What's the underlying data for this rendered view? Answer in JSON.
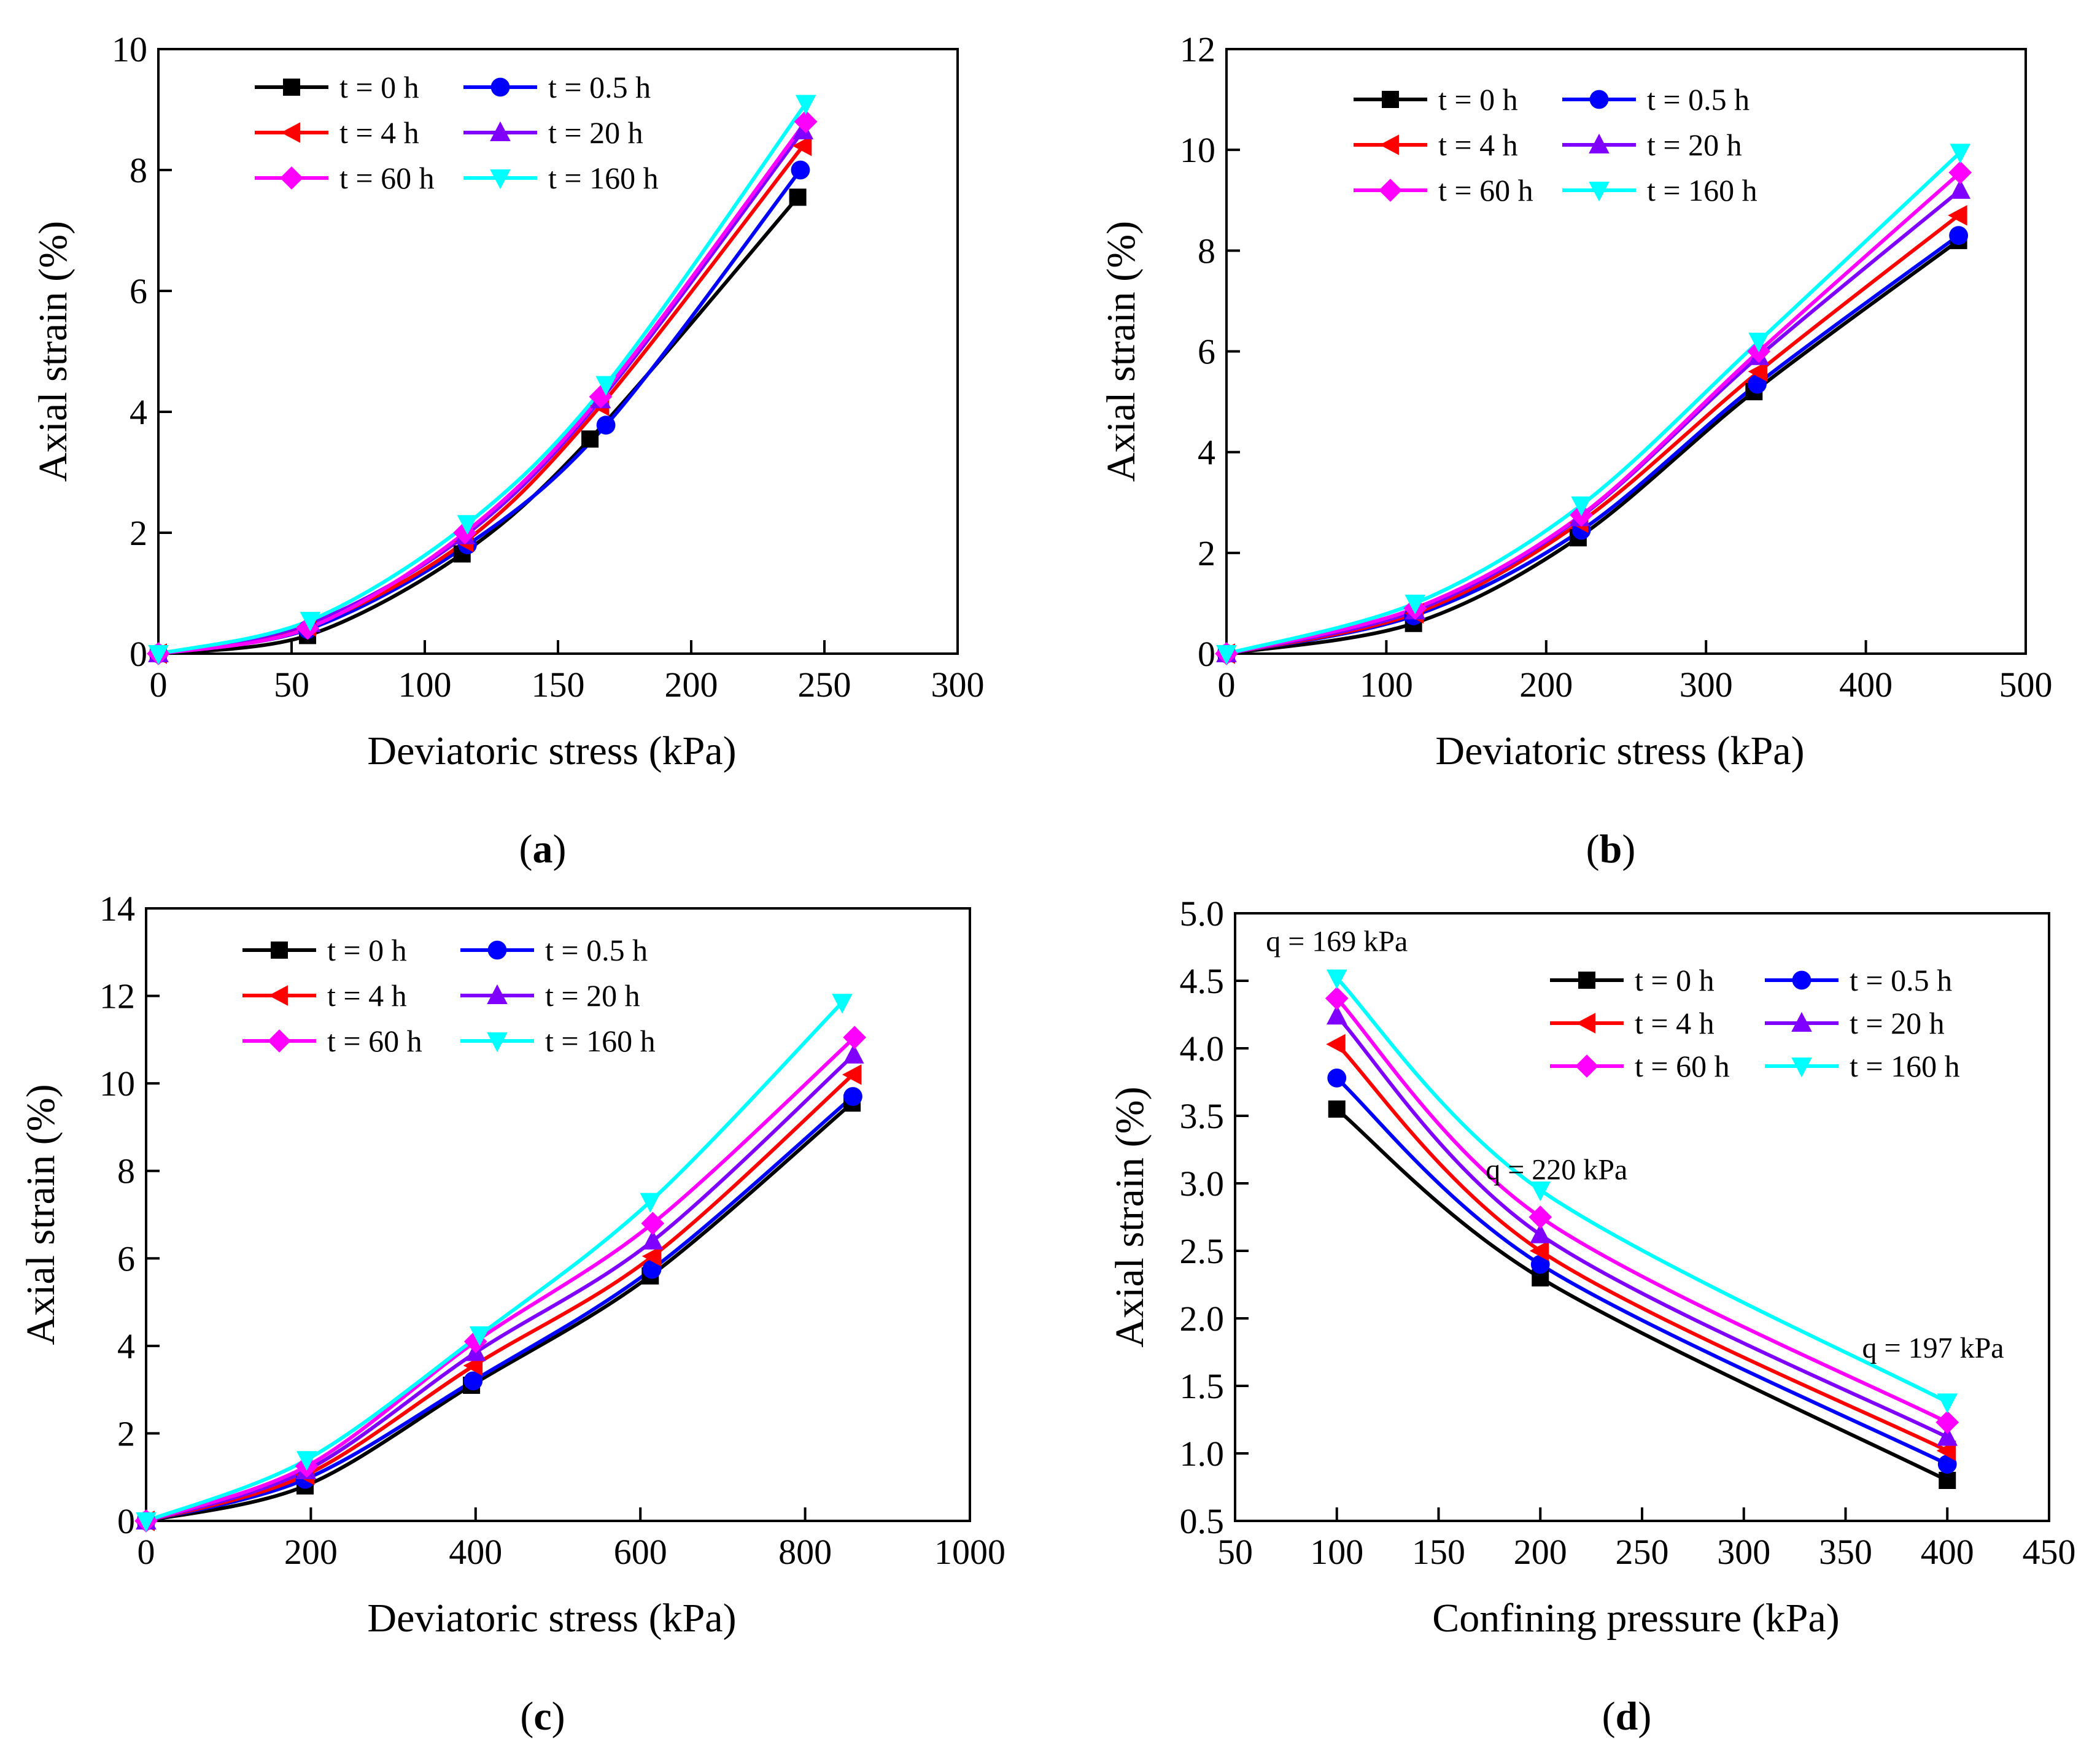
{
  "colors": {
    "t0": "#000000",
    "t05": "#0000ff",
    "t4": "#ff0000",
    "t20": "#8000ff",
    "t60": "#ff00ff",
    "t160": "#00ffff"
  },
  "chart_data": [
    {
      "id": "a",
      "type": "line",
      "panel_label": "a",
      "xlabel": "Deviatoric stress (kPa)",
      "ylabel": "Axial strain (%)",
      "xlim": [
        0,
        300
      ],
      "ylim": [
        0,
        10
      ],
      "xticks": [
        "0",
        "50",
        "100",
        "150",
        "200",
        "250",
        "300"
      ],
      "yticks": [
        "0",
        "2",
        "4",
        "6",
        "8",
        "10"
      ],
      "legend_position": "top-left",
      "series": [
        {
          "name": "t = 0 h",
          "key": "t0",
          "marker": "square",
          "x": [
            0,
            56,
            114,
            162,
            240
          ],
          "y": [
            0,
            0.3,
            1.65,
            3.55,
            7.55
          ]
        },
        {
          "name": "t = 0.5 h",
          "key": "t05",
          "marker": "circle",
          "x": [
            0,
            56,
            116,
            168,
            241
          ],
          "y": [
            0,
            0.4,
            1.8,
            3.78,
            8.0
          ]
        },
        {
          "name": "t = 4 h",
          "key": "t4",
          "marker": "triangle-left",
          "x": [
            0,
            56,
            115,
            166,
            242
          ],
          "y": [
            0,
            0.45,
            1.85,
            4.1,
            8.4
          ]
        },
        {
          "name": "t = 20 h",
          "key": "t20",
          "marker": "triangle-up",
          "x": [
            0,
            57,
            115,
            166,
            242
          ],
          "y": [
            0,
            0.5,
            1.95,
            4.2,
            8.65
          ]
        },
        {
          "name": "t = 60 h",
          "key": "t60",
          "marker": "diamond",
          "x": [
            0,
            56,
            115,
            166,
            243
          ],
          "y": [
            0,
            0.42,
            2.0,
            4.25,
            8.8
          ]
        },
        {
          "name": "t = 160 h",
          "key": "t160",
          "marker": "triangle-down",
          "x": [
            0,
            57,
            116,
            168,
            243
          ],
          "y": [
            0,
            0.55,
            2.15,
            4.45,
            9.1
          ]
        }
      ]
    },
    {
      "id": "b",
      "type": "line",
      "panel_label": "b",
      "xlabel": "Deviatoric stress (kPa)",
      "ylabel": "Axial strain (%)",
      "xlim": [
        0,
        500
      ],
      "ylim": [
        0,
        12
      ],
      "xticks": [
        "0",
        "100",
        "200",
        "300",
        "400",
        "500"
      ],
      "yticks": [
        "0",
        "2",
        "4",
        "6",
        "8",
        "10",
        "12"
      ],
      "legend_position": "top-left",
      "series": [
        {
          "name": "t = 0 h",
          "key": "t0",
          "marker": "square",
          "x": [
            0,
            117,
            220,
            330,
            458
          ],
          "y": [
            0,
            0.6,
            2.3,
            5.2,
            8.2
          ]
        },
        {
          "name": "t = 0.5 h",
          "key": "t05",
          "marker": "circle",
          "x": [
            0,
            117,
            222,
            332,
            458
          ],
          "y": [
            0,
            0.75,
            2.45,
            5.35,
            8.3
          ]
        },
        {
          "name": "t = 4 h",
          "key": "t4",
          "marker": "triangle-left",
          "x": [
            0,
            118,
            221,
            333,
            458
          ],
          "y": [
            0,
            0.8,
            2.6,
            5.6,
            8.7
          ]
        },
        {
          "name": "t = 20 h",
          "key": "t20",
          "marker": "triangle-up",
          "x": [
            0,
            118,
            221,
            333,
            459
          ],
          "y": [
            0,
            0.85,
            2.7,
            5.9,
            9.2
          ]
        },
        {
          "name": "t = 60 h",
          "key": "t60",
          "marker": "diamond",
          "x": [
            0,
            118,
            222,
            333,
            459
          ],
          "y": [
            0,
            0.9,
            2.75,
            6.0,
            9.55
          ]
        },
        {
          "name": "t = 160 h",
          "key": "t160",
          "marker": "triangle-down",
          "x": [
            0,
            118,
            222,
            333,
            459
          ],
          "y": [
            0,
            1.0,
            2.95,
            6.2,
            9.95
          ]
        }
      ]
    },
    {
      "id": "c",
      "type": "line",
      "panel_label": "c",
      "xlabel": "Deviatoric stress (kPa)",
      "ylabel": "Axial strain (%)",
      "xlim": [
        0,
        1000
      ],
      "ylim": [
        0,
        14
      ],
      "xticks": [
        "0",
        "200",
        "400",
        "600",
        "800",
        "1000"
      ],
      "yticks": [
        "0",
        "2",
        "4",
        "6",
        "8",
        "10",
        "12",
        "14"
      ],
      "legend_position": "top-left",
      "series": [
        {
          "name": "t = 0 h",
          "key": "t0",
          "marker": "square",
          "x": [
            0,
            193,
            395,
            612,
            857
          ],
          "y": [
            0,
            0.8,
            3.1,
            5.6,
            9.55
          ]
        },
        {
          "name": "t = 0.5 h",
          "key": "t05",
          "marker": "circle",
          "x": [
            0,
            193,
            397,
            614,
            858
          ],
          "y": [
            0,
            0.95,
            3.2,
            5.75,
            9.7
          ]
        },
        {
          "name": "t = 4 h",
          "key": "t4",
          "marker": "triangle-left",
          "x": [
            0,
            194,
            398,
            615,
            858
          ],
          "y": [
            0,
            1.05,
            3.55,
            6.05,
            10.2
          ]
        },
        {
          "name": "t = 20 h",
          "key": "t20",
          "marker": "triangle-up",
          "x": [
            0,
            194,
            400,
            615,
            859
          ],
          "y": [
            0,
            1.15,
            3.85,
            6.4,
            10.65
          ]
        },
        {
          "name": "t = 60 h",
          "key": "t60",
          "marker": "diamond",
          "x": [
            0,
            195,
            400,
            615,
            860
          ],
          "y": [
            0,
            1.25,
            4.1,
            6.8,
            11.05
          ]
        },
        {
          "name": "t = 160 h",
          "key": "t160",
          "marker": "triangle-down",
          "x": [
            0,
            195,
            405,
            612,
            845
          ],
          "y": [
            0,
            1.4,
            4.25,
            7.3,
            11.85
          ]
        }
      ]
    },
    {
      "id": "d",
      "type": "line",
      "panel_label": "d",
      "xlabel": "Confining pressure (kPa)",
      "ylabel": "Axial strain (%)",
      "xlim": [
        50,
        450
      ],
      "ylim": [
        0.5,
        5.0
      ],
      "xticks": [
        "50",
        "100",
        "150",
        "200",
        "250",
        "300",
        "350",
        "400",
        "450"
      ],
      "yticks": [
        "0.5",
        "1.0",
        "1.5",
        "2.0",
        "2.5",
        "3.0",
        "3.5",
        "4.0",
        "4.5",
        "5.0"
      ],
      "legend_position": "top-right",
      "annotations": [
        {
          "text": "q = 169 kPa",
          "x": 100,
          "y": 4.72
        },
        {
          "text": "q = 220 kPa",
          "x": 208,
          "y": 3.03
        },
        {
          "text": "q = 197 kPa",
          "x": 393,
          "y": 1.71
        }
      ],
      "series": [
        {
          "name": "t = 0 h",
          "key": "t0",
          "marker": "square",
          "x": [
            100,
            200,
            400
          ],
          "y": [
            3.55,
            2.3,
            0.8
          ]
        },
        {
          "name": "t = 0.5 h",
          "key": "t05",
          "marker": "circle",
          "x": [
            100,
            200,
            400
          ],
          "y": [
            3.78,
            2.4,
            0.92
          ]
        },
        {
          "name": "t = 4 h",
          "key": "t4",
          "marker": "triangle-left",
          "x": [
            100,
            200,
            400
          ],
          "y": [
            4.03,
            2.5,
            1.02
          ]
        },
        {
          "name": "t = 20 h",
          "key": "t20",
          "marker": "triangle-up",
          "x": [
            100,
            200,
            400
          ],
          "y": [
            4.24,
            2.62,
            1.12
          ]
        },
        {
          "name": "t = 60 h",
          "key": "t60",
          "marker": "diamond",
          "x": [
            100,
            200,
            400
          ],
          "y": [
            4.37,
            2.75,
            1.23
          ]
        },
        {
          "name": "t = 160 h",
          "key": "t160",
          "marker": "triangle-down",
          "x": [
            100,
            200,
            400
          ],
          "y": [
            4.52,
            2.95,
            1.38
          ]
        }
      ]
    }
  ]
}
